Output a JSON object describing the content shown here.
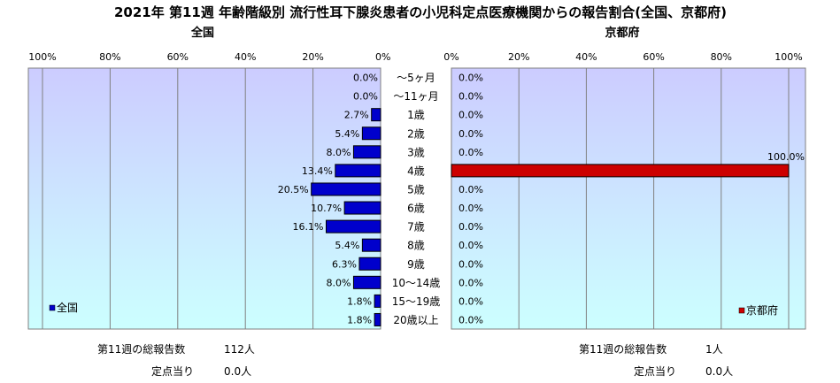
{
  "title": "2021年 第11週 年齢階級別 流行性耳下腺炎患者の小児科定点医療機関からの報告割合(全国、京都府)",
  "colors": {
    "national_bar": "#0000cc",
    "kyoto_bar": "#cc0000",
    "plot_bg_top": "#ccccff",
    "plot_bg_bottom": "#ccffff"
  },
  "chart_data": [
    {
      "type": "bar",
      "orientation": "horizontal-mirrored",
      "panel_title": "全国",
      "legend": "全国",
      "legend_position": "bottom-left",
      "xlim": [
        0,
        100
      ],
      "x_ticks": [
        "100%",
        "80%",
        "60%",
        "40%",
        "20%",
        "0%"
      ],
      "grid": true,
      "categories": [
        "～5ヶ月",
        "～11ヶ月",
        "1歳",
        "2歳",
        "3歳",
        "4歳",
        "5歳",
        "6歳",
        "7歳",
        "8歳",
        "9歳",
        "10～14歳",
        "15～19歳",
        "20歳以上"
      ],
      "values": [
        0.0,
        0.0,
        2.7,
        5.4,
        8.0,
        13.4,
        20.5,
        10.7,
        16.1,
        5.4,
        6.3,
        8.0,
        1.8,
        1.8
      ],
      "labels": [
        "0.0%",
        "0.0%",
        "2.7%",
        "5.4%",
        "8.0%",
        "13.4%",
        "20.5%",
        "10.7%",
        "16.1%",
        "5.4%",
        "6.3%",
        "8.0%",
        "1.8%",
        "1.8%"
      ]
    },
    {
      "type": "bar",
      "orientation": "horizontal",
      "panel_title": "京都府",
      "legend": "京都府",
      "legend_position": "bottom-right",
      "xlim": [
        0,
        100
      ],
      "x_ticks": [
        "0%",
        "20%",
        "40%",
        "60%",
        "80%",
        "100%"
      ],
      "grid": true,
      "categories": [
        "～5ヶ月",
        "～11ヶ月",
        "1歳",
        "2歳",
        "3歳",
        "4歳",
        "5歳",
        "6歳",
        "7歳",
        "8歳",
        "9歳",
        "10～14歳",
        "15～19歳",
        "20歳以上"
      ],
      "values": [
        0.0,
        0.0,
        0.0,
        0.0,
        0.0,
        100.0,
        0.0,
        0.0,
        0.0,
        0.0,
        0.0,
        0.0,
        0.0,
        0.0
      ],
      "labels": [
        "0.0%",
        "0.0%",
        "0.0%",
        "0.0%",
        "0.0%",
        "100.0%",
        "0.0%",
        "0.0%",
        "0.0%",
        "0.0%",
        "0.0%",
        "0.0%",
        "0.0%",
        "0.0%"
      ]
    }
  ],
  "footer": {
    "national": {
      "total_label": "第11週の総報告数",
      "total_value": "112人",
      "per_site_label": "定点当り",
      "per_site_value": "0.0人"
    },
    "kyoto": {
      "total_label": "第11週の総報告数",
      "total_value": "1人",
      "per_site_label": "定点当り",
      "per_site_value": "0.0人"
    }
  }
}
